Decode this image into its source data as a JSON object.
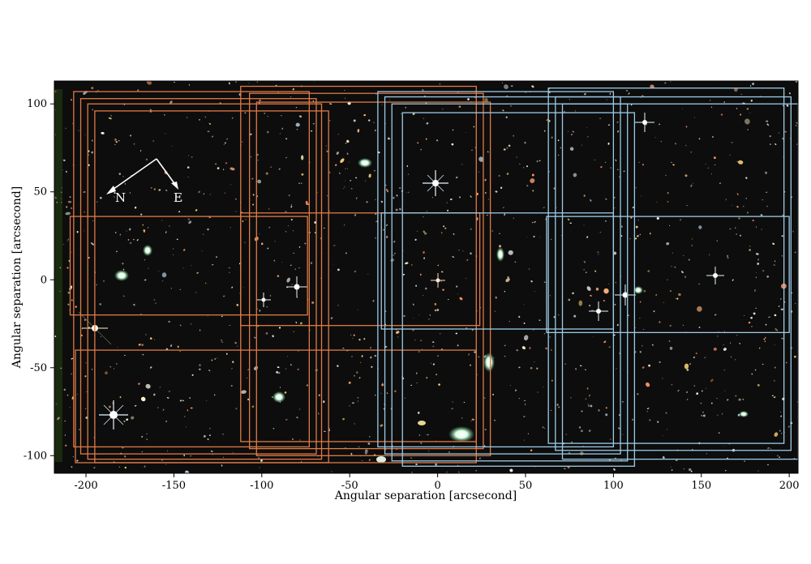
{
  "figure": {
    "x_axis": {
      "label": "Angular separation [arcsecond]",
      "range": [
        -218,
        205
      ],
      "ticks": [
        -200,
        -150,
        -100,
        -50,
        0,
        50,
        100,
        150,
        200
      ]
    },
    "y_axis": {
      "label": "Angular separation [arcsecond]",
      "range": [
        -110,
        113
      ],
      "ticks": [
        -100,
        -50,
        0,
        50,
        100
      ]
    },
    "compass": {
      "north": "N",
      "east": "E"
    },
    "colors": {
      "background_sky": "#0d0d0d",
      "orange_footprints": "#e07a45",
      "blue_footprints": "#9ccbe6",
      "compass": "#ffffff"
    },
    "footprints": {
      "orange": [
        {
          "x0": -207,
          "x1": -73,
          "y0": -95,
          "y1": 107
        },
        {
          "x0": -203,
          "x1": -69,
          "y0": -99,
          "y1": 103
        },
        {
          "x0": -199,
          "x1": -66,
          "y0": -102,
          "y1": 100
        },
        {
          "x0": -195,
          "x1": -62,
          "y0": -104,
          "y1": 96
        },
        {
          "x0": -112,
          "x1": 22,
          "y0": -92,
          "y1": 110
        },
        {
          "x0": -107,
          "x1": 26,
          "y0": -96,
          "y1": 106
        },
        {
          "x0": -103,
          "x1": 30,
          "y0": -100,
          "y1": 101
        },
        {
          "x0": -209,
          "x1": -74,
          "y0": -20,
          "y1": 36
        },
        {
          "x0": -112,
          "x1": 24,
          "y0": -26,
          "y1": 38
        },
        {
          "x0": -206,
          "x1": 22,
          "y0": -104,
          "y1": -40
        }
      ],
      "blue": [
        {
          "x0": -34,
          "x1": 100,
          "y0": -95,
          "y1": 107
        },
        {
          "x0": -30,
          "x1": 104,
          "y0": -99,
          "y1": 104
        },
        {
          "x0": -26,
          "x1": 108,
          "y0": -103,
          "y1": 100
        },
        {
          "x0": -20,
          "x1": 112,
          "y0": -106,
          "y1": 95
        },
        {
          "x0": 63,
          "x1": 197,
          "y0": -93,
          "y1": 109
        },
        {
          "x0": 67,
          "x1": 201,
          "y0": -97,
          "y1": 104
        },
        {
          "x0": 71,
          "x1": 205,
          "y0": -102,
          "y1": 100
        },
        {
          "x0": -32,
          "x1": 100,
          "y0": -28,
          "y1": 38
        },
        {
          "x0": 62,
          "x1": 200,
          "y0": -30,
          "y1": 36
        }
      ]
    }
  }
}
